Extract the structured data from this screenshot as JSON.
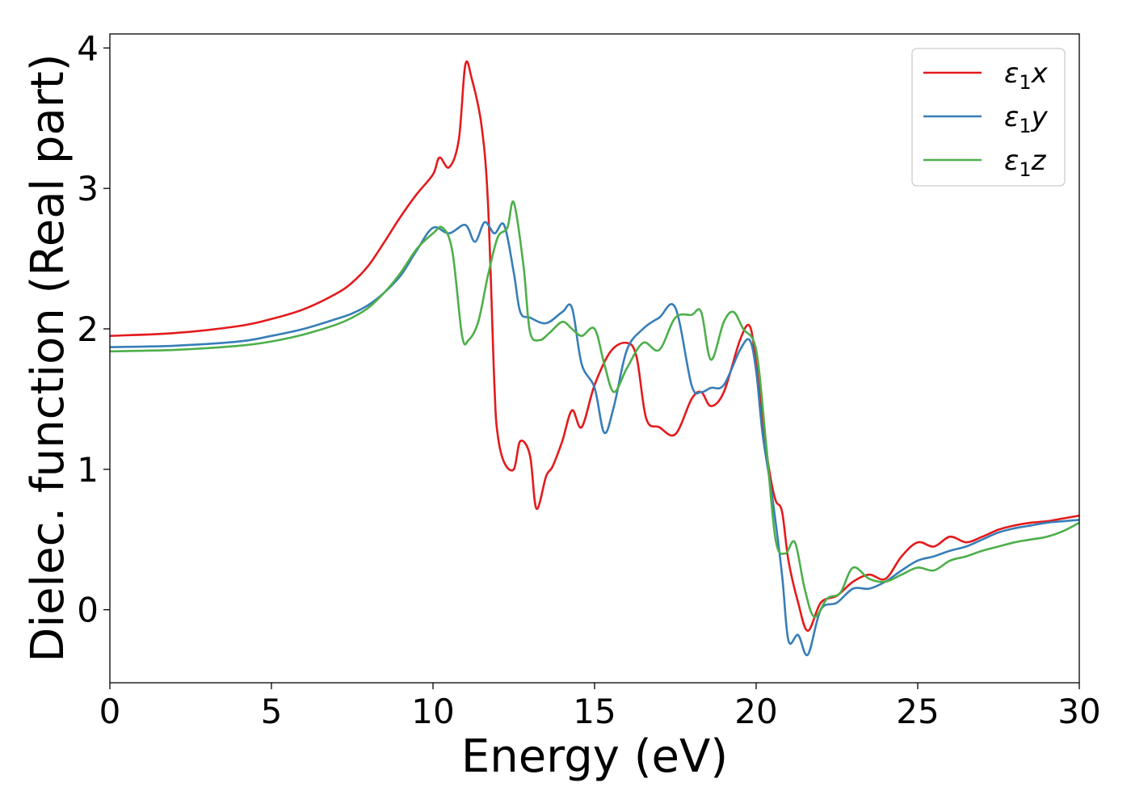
{
  "chart_data": {
    "type": "line",
    "title": "",
    "xlabel": "Energy (eV)",
    "ylabel": "Dielec. function (Real part)",
    "xlim": [
      0,
      30
    ],
    "ylim": [
      -0.52,
      4.1
    ],
    "xticks": [
      0,
      5,
      10,
      15,
      20,
      25,
      30
    ],
    "yticks": [
      0,
      1,
      2,
      3,
      4
    ],
    "grid": false,
    "legend": "top-right",
    "series": [
      {
        "name": "ε₁x",
        "legend_parts": {
          "base": "ε",
          "sub": "1",
          "axis": "x"
        },
        "color": "#e41a1c",
        "x": [
          0,
          2,
          4,
          5,
          6,
          7,
          7.5,
          8,
          8.5,
          9,
          9.5,
          10,
          10.2,
          10.5,
          10.8,
          11,
          11.2,
          11.5,
          11.7,
          11.9,
          12,
          12.2,
          12.5,
          12.7,
          13,
          13.2,
          13.5,
          13.7,
          14,
          14.3,
          14.6,
          15,
          15.5,
          16,
          16.3,
          16.6,
          17,
          17.5,
          18,
          18.3,
          18.6,
          19,
          19.5,
          19.8,
          20,
          20.2,
          20.4,
          20.6,
          20.8,
          21,
          21.3,
          21.6,
          22,
          22.5,
          23,
          23.5,
          24,
          24.5,
          25,
          25.5,
          26,
          26.5,
          27,
          27.5,
          28,
          28.5,
          29,
          29.5,
          30
        ],
        "y": [
          1.95,
          1.97,
          2.02,
          2.07,
          2.14,
          2.25,
          2.33,
          2.45,
          2.62,
          2.8,
          2.96,
          3.1,
          3.22,
          3.15,
          3.35,
          3.88,
          3.78,
          3.45,
          2.9,
          1.6,
          1.25,
          1.05,
          1.0,
          1.2,
          1.1,
          0.72,
          0.95,
          1.02,
          1.2,
          1.42,
          1.3,
          1.6,
          1.84,
          1.9,
          1.8,
          1.36,
          1.3,
          1.25,
          1.5,
          1.55,
          1.45,
          1.55,
          1.92,
          2.02,
          1.75,
          1.35,
          1.0,
          0.78,
          0.7,
          0.35,
          0.05,
          -0.15,
          0.05,
          0.1,
          0.2,
          0.25,
          0.22,
          0.38,
          0.48,
          0.45,
          0.52,
          0.48,
          0.52,
          0.57,
          0.6,
          0.62,
          0.63,
          0.65,
          0.67
        ]
      },
      {
        "name": "ε₁y",
        "legend_parts": {
          "base": "ε",
          "sub": "1",
          "axis": "y"
        },
        "color": "#377eb8",
        "x": [
          0,
          2,
          4,
          5,
          6,
          7,
          7.5,
          8,
          8.5,
          9,
          9.5,
          10,
          10.5,
          11,
          11.3,
          11.6,
          11.9,
          12.2,
          12.5,
          12.7,
          13,
          13.5,
          14,
          14.3,
          14.6,
          15,
          15.3,
          15.6,
          16,
          16.5,
          17,
          17.5,
          18,
          18.3,
          18.6,
          19,
          19.5,
          19.8,
          20,
          20.2,
          20.5,
          20.8,
          21,
          21.3,
          21.6,
          22,
          22.5,
          23,
          23.5,
          24,
          24.5,
          25,
          25.5,
          26,
          26.5,
          27,
          27.5,
          28,
          28.5,
          29,
          29.5,
          30
        ],
        "y": [
          1.87,
          1.88,
          1.91,
          1.95,
          2.0,
          2.07,
          2.11,
          2.17,
          2.26,
          2.38,
          2.56,
          2.72,
          2.68,
          2.74,
          2.62,
          2.76,
          2.68,
          2.74,
          2.4,
          2.12,
          2.08,
          2.04,
          2.12,
          2.15,
          1.75,
          1.58,
          1.26,
          1.45,
          1.85,
          2.0,
          2.08,
          2.15,
          1.6,
          1.55,
          1.58,
          1.6,
          1.85,
          1.92,
          1.7,
          1.25,
          0.8,
          0.25,
          -0.22,
          -0.18,
          -0.32,
          0.0,
          0.05,
          0.15,
          0.15,
          0.2,
          0.28,
          0.35,
          0.38,
          0.42,
          0.45,
          0.5,
          0.55,
          0.58,
          0.6,
          0.62,
          0.63,
          0.64
        ]
      },
      {
        "name": "ε₁z",
        "legend_parts": {
          "base": "ε",
          "sub": "1",
          "axis": "z"
        },
        "color": "#4daf4a",
        "x": [
          0,
          2,
          4,
          5,
          6,
          7,
          7.5,
          8,
          8.5,
          9,
          9.5,
          10,
          10.3,
          10.6,
          10.9,
          11.1,
          11.4,
          11.7,
          12,
          12.3,
          12.5,
          12.8,
          13,
          13.3,
          13.6,
          14,
          14.3,
          14.6,
          15,
          15.3,
          15.6,
          16,
          16.5,
          17,
          17.5,
          18,
          18.3,
          18.6,
          19,
          19.3,
          19.6,
          20,
          20.3,
          20.6,
          20.9,
          21.2,
          21.5,
          21.8,
          22.2,
          22.6,
          23,
          23.5,
          24,
          24.5,
          25,
          25.5,
          26,
          26.5,
          27,
          27.5,
          28,
          28.5,
          29,
          29.5,
          30
        ],
        "y": [
          1.84,
          1.85,
          1.88,
          1.91,
          1.96,
          2.03,
          2.08,
          2.15,
          2.26,
          2.4,
          2.57,
          2.68,
          2.72,
          2.55,
          1.95,
          1.92,
          2.05,
          2.38,
          2.65,
          2.72,
          2.9,
          2.45,
          1.98,
          1.92,
          1.97,
          2.05,
          2.0,
          1.95,
          2.0,
          1.75,
          1.55,
          1.72,
          1.9,
          1.85,
          2.08,
          2.1,
          2.12,
          1.78,
          2.05,
          2.12,
          2.0,
          1.85,
          1.2,
          0.5,
          0.4,
          0.48,
          0.15,
          -0.05,
          0.08,
          0.12,
          0.3,
          0.22,
          0.2,
          0.25,
          0.3,
          0.28,
          0.35,
          0.38,
          0.42,
          0.45,
          0.48,
          0.5,
          0.52,
          0.56,
          0.62
        ]
      }
    ]
  }
}
